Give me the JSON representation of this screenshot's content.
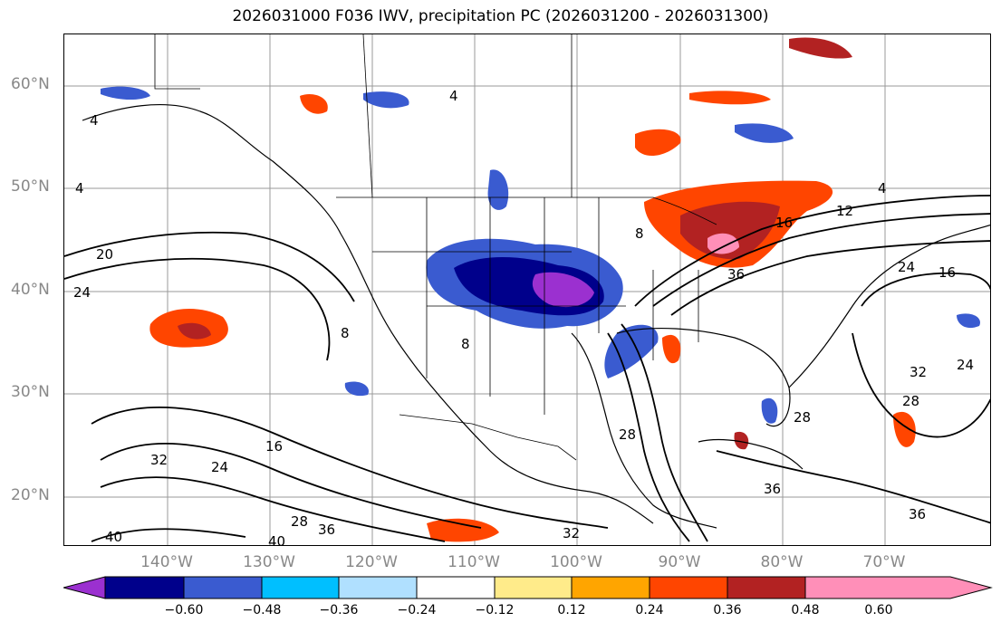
{
  "title": "2026031000 F036 IWV, precipitation PC (2026031200 - 2026031300)",
  "latitude_labels": [
    "60°N",
    "50°N",
    "40°N",
    "30°N",
    "20°N"
  ],
  "longitude_labels": [
    "140°W",
    "130°W",
    "120°W",
    "110°W",
    "100°W",
    "90°W",
    "80°W",
    "70°W"
  ],
  "colorbar": {
    "ticks": [
      "−0.60",
      "−0.48",
      "−0.36",
      "−0.24",
      "−0.12",
      "0.12",
      "0.24",
      "0.36",
      "0.48",
      "0.60"
    ],
    "colors": [
      "#9b30d0",
      "#00008b",
      "#3a5bd0",
      "#00bfff",
      "#b0e0ff",
      "#ffffff",
      "#ffeb8a",
      "#ffa500",
      "#ff4500",
      "#b22222",
      "#ff8fb8"
    ]
  },
  "contour_labels": [
    "4",
    "4",
    "4",
    "4",
    "12",
    "16",
    "16",
    "16",
    "20",
    "24",
    "24",
    "24",
    "24",
    "28",
    "28",
    "28",
    "28",
    "32",
    "32",
    "32",
    "36",
    "36",
    "36",
    "36",
    "40",
    "40",
    "8",
    "8",
    "8"
  ]
}
